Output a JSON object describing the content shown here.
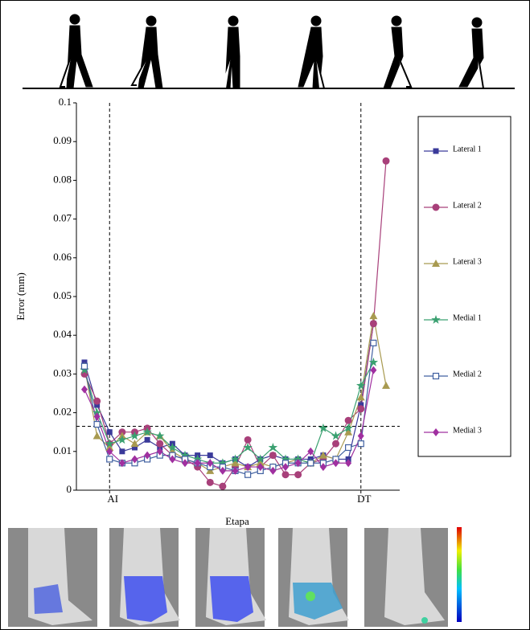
{
  "chart_data": {
    "type": "line",
    "x_label": "Etapa",
    "y_label": "Error (mm)",
    "categories": [
      null,
      null,
      "AI",
      null,
      null,
      null,
      null,
      null,
      null,
      null,
      null,
      null,
      null,
      null,
      null,
      null,
      null,
      null,
      null,
      null,
      null,
      null,
      "DT",
      null,
      null
    ],
    "ylim": [
      0,
      0.1
    ],
    "yticks": [
      0,
      0.01,
      0.02,
      0.03,
      0.04,
      0.05,
      0.06,
      0.07,
      0.08,
      0.09,
      0.1
    ],
    "hline": 0.0165,
    "series": [
      {
        "name": "Lateral 1",
        "color": "#3a3a9a",
        "marker": "square",
        "values": [
          0.033,
          0.022,
          0.015,
          0.01,
          0.011,
          0.013,
          0.011,
          0.012,
          0.009,
          0.009,
          0.009,
          0.007,
          0.008,
          0.006,
          0.008,
          0.009,
          0.008,
          0.008,
          0.008,
          0.009,
          0.008,
          0.008,
          0.022,
          0.043,
          null
        ]
      },
      {
        "name": "Lateral 2",
        "color": "#a8407a",
        "marker": "circle",
        "values": [
          0.03,
          0.023,
          0.012,
          0.015,
          0.015,
          0.016,
          0.012,
          0.009,
          0.008,
          0.006,
          0.002,
          0.001,
          0.006,
          0.013,
          0.006,
          0.009,
          0.004,
          0.004,
          0.007,
          0.008,
          0.012,
          0.018,
          0.021,
          0.043,
          0.085
        ]
      },
      {
        "name": "Lateral 3",
        "color": "#a89a50",
        "marker": "triangle",
        "values": [
          0.032,
          0.014,
          0.011,
          0.014,
          0.012,
          0.015,
          0.014,
          0.01,
          0.008,
          0.007,
          0.005,
          0.006,
          0.007,
          0.006,
          0.007,
          0.006,
          0.007,
          0.008,
          0.007,
          0.009,
          0.008,
          0.015,
          0.024,
          0.045,
          0.027
        ]
      },
      {
        "name": "Medial 1",
        "color": "#3aa070",
        "marker": "star",
        "values": [
          0.031,
          0.02,
          0.012,
          0.013,
          0.014,
          0.015,
          0.014,
          0.011,
          0.009,
          0.008,
          0.007,
          0.007,
          0.008,
          0.011,
          0.008,
          0.011,
          0.008,
          0.008,
          0.007,
          0.016,
          0.014,
          0.016,
          0.027,
          0.033,
          null
        ]
      },
      {
        "name": "Medial 2",
        "color": "#4060a0",
        "marker": "hollow-square",
        "values": [
          0.032,
          0.017,
          0.008,
          0.007,
          0.007,
          0.008,
          0.009,
          0.009,
          0.008,
          0.007,
          0.006,
          0.006,
          0.005,
          0.004,
          0.005,
          0.006,
          0.007,
          0.007,
          0.007,
          0.007,
          0.008,
          0.011,
          0.012,
          0.038,
          null
        ]
      },
      {
        "name": "Medial 3",
        "color": "#a030a0",
        "marker": "diamond",
        "values": [
          0.026,
          0.019,
          0.01,
          0.007,
          0.008,
          0.009,
          0.01,
          0.008,
          0.007,
          0.007,
          0.007,
          0.005,
          0.005,
          0.006,
          0.006,
          0.005,
          0.006,
          0.007,
          0.01,
          0.006,
          0.007,
          0.007,
          0.014,
          0.031,
          null
        ]
      }
    ]
  }
}
